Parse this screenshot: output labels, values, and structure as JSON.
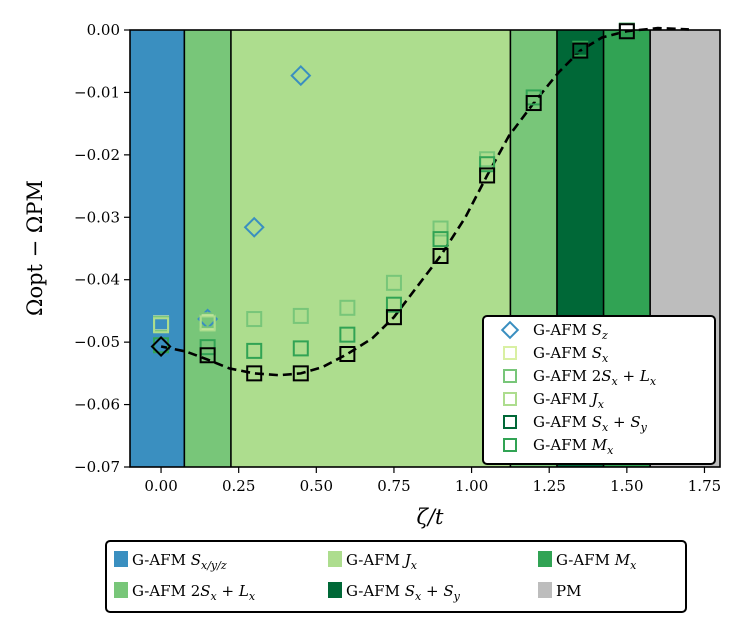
{
  "chart_data": {
    "type": "scatter",
    "xlabel": "ζ/t",
    "ylabel": "Ωopt − ΩPM",
    "xlim": [
      -0.1,
      1.8
    ],
    "ylim": [
      -0.07,
      0.0
    ],
    "x_ticks": [
      "0.00",
      "0.25",
      "0.50",
      "0.75",
      "1.00",
      "1.25",
      "1.50",
      "1.75"
    ],
    "x_tick_values": [
      0.0,
      0.25,
      0.5,
      0.75,
      1.0,
      1.25,
      1.5,
      1.75
    ],
    "y_ticks": [
      "0.00",
      "−0.01",
      "−0.02",
      "−0.03",
      "−0.04",
      "−0.05",
      "−0.06",
      "−0.07"
    ],
    "y_tick_values": [
      0.0,
      -0.01,
      -0.02,
      -0.03,
      -0.04,
      -0.05,
      -0.06,
      -0.07
    ],
    "regions": [
      {
        "x0": -0.1,
        "x1": 0.075,
        "color": "#3a8fc0"
      },
      {
        "x0": 0.075,
        "x1": 0.225,
        "color": "#78c679"
      },
      {
        "x0": 0.225,
        "x1": 1.125,
        "color": "#addd8e"
      },
      {
        "x0": 1.125,
        "x1": 1.275,
        "color": "#78c679"
      },
      {
        "x0": 1.275,
        "x1": 1.425,
        "color": "#006837"
      },
      {
        "x0": 1.425,
        "x1": 1.575,
        "color": "#31a354"
      },
      {
        "x0": 1.575,
        "x1": 1.8,
        "color": "#bdbdbd"
      }
    ],
    "series": [
      {
        "name": "G-AFM S_z",
        "label_main": "G-AFM ",
        "label_var": "S",
        "label_sub": "z",
        "label_tail": "",
        "marker": "diamond",
        "color": "#3a8fc0",
        "x": [
          0.0,
          0.15,
          0.3,
          0.45
        ],
        "y": [
          -0.0507,
          -0.0463,
          -0.0316,
          -0.0073
        ]
      },
      {
        "name": "G-AFM S_x",
        "label_main": "G-AFM ",
        "label_var": "S",
        "label_sub": "x",
        "label_tail": "",
        "marker": "square",
        "color": "#d9f0a3",
        "x": [
          0.0,
          0.15
        ],
        "y": [
          -0.047,
          -0.0468
        ]
      },
      {
        "name": "G-AFM 2S_x + L_x",
        "label_main": "G-AFM 2",
        "label_var": "S",
        "label_sub": "x",
        "label_tail": " + L",
        "label_tail_sub": "x",
        "marker": "square",
        "color": "#78c679",
        "x": [
          0.0,
          0.15,
          0.3,
          0.45,
          0.6,
          0.75,
          0.9,
          1.05,
          1.2
        ],
        "y": [
          -0.0471,
          -0.0465,
          -0.0463,
          -0.0458,
          -0.0445,
          -0.0405,
          -0.0318,
          -0.0207,
          -0.0102
        ]
      },
      {
        "name": "G-AFM J_x",
        "label_main": "G-AFM ",
        "label_var": "J",
        "label_sub": "x",
        "label_tail": "",
        "marker": "square",
        "color": "#addd8e",
        "x": [
          0.0,
          0.15
        ],
        "y": [
          -0.0473,
          -0.047
        ]
      },
      {
        "name": "G-AFM S_x + S_y",
        "label_main": "G-AFM ",
        "label_var": "S",
        "label_sub": "x",
        "label_tail": " + S",
        "label_tail_sub": "y",
        "marker": "square",
        "color": "#006837",
        "x": [
          1.35
        ],
        "y": [
          -0.0025
        ]
      },
      {
        "name": "G-AFM M_x",
        "label_main": "G-AFM ",
        "label_var": "M",
        "label_sub": "x",
        "label_tail": "",
        "marker": "square",
        "color": "#31a354",
        "x": [
          0.0,
          0.15,
          0.3,
          0.45,
          0.6,
          0.75,
          0.9,
          1.05,
          1.2,
          1.35,
          1.5
        ],
        "y": [
          -0.0505,
          -0.0508,
          -0.0514,
          -0.051,
          -0.0488,
          -0.044,
          -0.0335,
          -0.0215,
          -0.0108,
          -0.003,
          -0.0001
        ]
      }
    ],
    "optimal": {
      "x": [
        0.0,
        0.15,
        0.3,
        0.45,
        0.6,
        0.75,
        0.9,
        1.05,
        1.2,
        1.35,
        1.5
      ],
      "y": [
        -0.0507,
        -0.0521,
        -0.055,
        -0.055,
        -0.0519,
        -0.046,
        -0.0362,
        -0.0233,
        -0.0117,
        -0.0033,
        -0.0002
      ]
    },
    "dashed_line": {
      "x": [
        0.0,
        0.08,
        0.15,
        0.22,
        0.3,
        0.38,
        0.45,
        0.52,
        0.6,
        0.68,
        0.75,
        0.82,
        0.9,
        0.98,
        1.05,
        1.12,
        1.2,
        1.28,
        1.35,
        1.42,
        1.5,
        1.6,
        1.7
      ],
      "y": [
        -0.0507,
        -0.0515,
        -0.0528,
        -0.0542,
        -0.055,
        -0.0553,
        -0.055,
        -0.054,
        -0.0519,
        -0.0494,
        -0.046,
        -0.0414,
        -0.0362,
        -0.03,
        -0.0233,
        -0.017,
        -0.0117,
        -0.0068,
        -0.0033,
        -0.0012,
        -0.0002,
        0.0003,
        0.0001
      ]
    },
    "inner_legend": {
      "placement": "lower-right"
    },
    "bottom_legend": [
      {
        "label_main": "G-AFM ",
        "label_var": "S",
        "label_sub": "x/y/z",
        "label_tail": "",
        "color": "#3a8fc0"
      },
      {
        "label_main": "G-AFM ",
        "label_var": "J",
        "label_sub": "x",
        "label_tail": "",
        "color": "#addd8e"
      },
      {
        "label_main": "G-AFM ",
        "label_var": "M",
        "label_sub": "x",
        "label_tail": "",
        "color": "#31a354"
      },
      {
        "label_main": "G-AFM 2",
        "label_var": "S",
        "label_sub": "x",
        "label_tail": " + L",
        "label_tail_sub": "x",
        "color": "#78c679"
      },
      {
        "label_main": "G-AFM ",
        "label_var": "S",
        "label_sub": "x",
        "label_tail": " + S",
        "label_tail_sub": "y",
        "color": "#006837"
      },
      {
        "label_main": "PM",
        "label_var": "",
        "label_sub": "",
        "label_tail": "",
        "color": "#bdbdbd"
      }
    ]
  }
}
